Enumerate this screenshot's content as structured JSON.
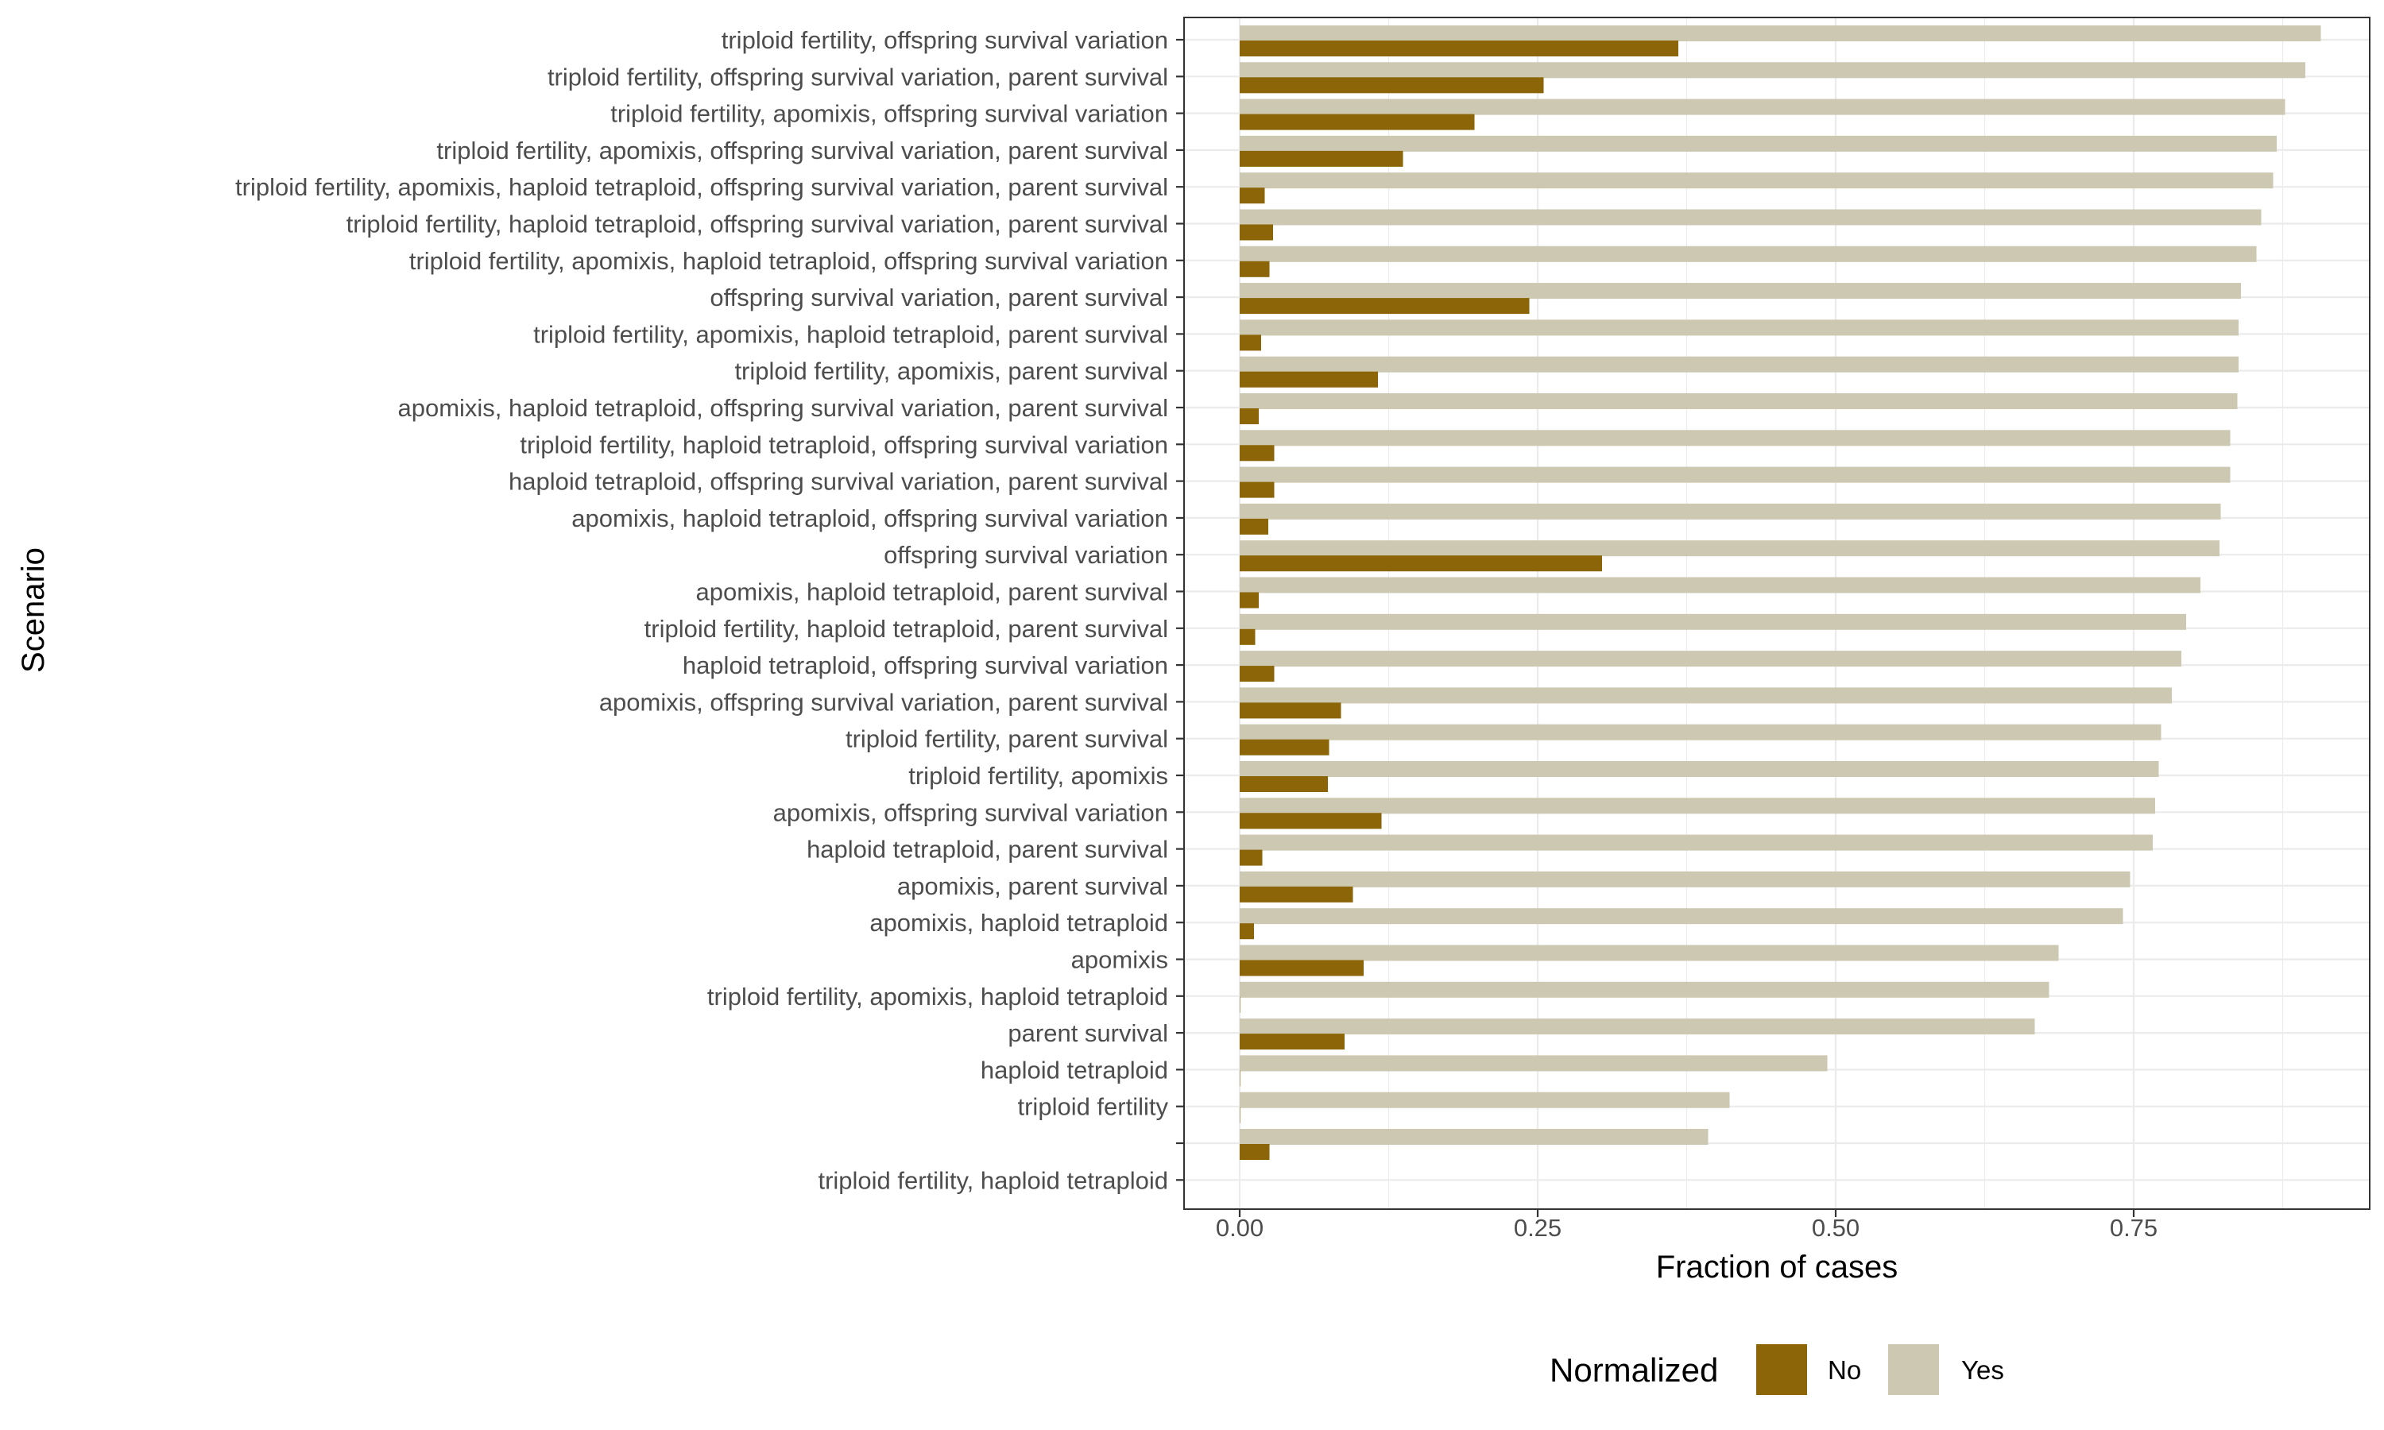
{
  "chart_data": {
    "type": "bar",
    "orientation": "horizontal",
    "xlabel": "Fraction of cases",
    "ylabel": "Scenario",
    "xlim": [
      -0.09,
      1.9
    ],
    "x_ticks": [
      0.0,
      0.25,
      0.5,
      0.75
    ],
    "x_tick_labels": [
      "0.00",
      "0.25",
      "0.50",
      "0.75"
    ],
    "grid": true,
    "legend": {
      "title": "Normalized",
      "position": "bottom",
      "entries": [
        "No",
        "Yes"
      ]
    },
    "series_colors": {
      "No": "#8b6508",
      "Yes": "#cdc8b1"
    },
    "categories": [
      "triploid fertility, offspring survival variation",
      "triploid fertility, offspring survival variation, parent survival",
      "triploid fertility, apomixis, offspring survival variation",
      "triploid fertility, apomixis, offspring survival variation, parent survival",
      "triploid fertility, apomixis, haploid tetraploid, offspring survival variation, parent survival",
      "triploid fertility, haploid tetraploid, offspring survival variation, parent survival",
      "triploid fertility, apomixis, haploid tetraploid, offspring survival variation",
      "offspring survival variation, parent survival",
      "triploid fertility, apomixis, haploid tetraploid, parent survival",
      "triploid fertility, apomixis, parent survival",
      "apomixis, haploid tetraploid, offspring survival variation, parent survival",
      "triploid fertility, haploid tetraploid, offspring survival variation",
      "haploid tetraploid, offspring survival variation, parent survival",
      "apomixis, haploid tetraploid, offspring survival variation",
      "offspring survival variation",
      "apomixis, haploid tetraploid, parent survival",
      "triploid fertility, haploid tetraploid, parent survival",
      "haploid tetraploid, offspring survival variation",
      "apomixis, offspring survival variation, parent survival",
      "triploid fertility, parent survival",
      "triploid fertility, apomixis",
      "apomixis, offspring survival variation",
      "haploid tetraploid, parent survival",
      "apomixis, parent survival",
      "apomixis, haploid tetraploid",
      "apomixis",
      "triploid fertility, apomixis, haploid tetraploid",
      "parent survival",
      "haploid tetraploid",
      "triploid fertility",
      "",
      "triploid fertility, haploid tetraploid"
    ],
    "series": [
      {
        "name": "No",
        "values": [
          0.368,
          0.255,
          0.197,
          0.137,
          0.021,
          0.028,
          0.025,
          0.243,
          0.018,
          0.116,
          0.016,
          0.029,
          0.029,
          0.024,
          0.304,
          0.016,
          0.013,
          0.029,
          0.085,
          0.075,
          0.074,
          0.119,
          0.019,
          0.095,
          0.012,
          0.104,
          0.0,
          0.088,
          0.0,
          0.0,
          0.025,
          null
        ]
      },
      {
        "name": "Yes",
        "values": [
          0.907,
          0.894,
          0.877,
          0.87,
          0.867,
          0.857,
          0.853,
          0.84,
          0.838,
          0.838,
          0.837,
          0.831,
          0.831,
          0.823,
          0.822,
          0.806,
          0.794,
          0.79,
          0.782,
          0.773,
          0.771,
          0.768,
          0.766,
          0.747,
          0.741,
          0.687,
          0.679,
          0.667,
          0.493,
          0.411,
          0.393,
          null
        ]
      }
    ]
  }
}
